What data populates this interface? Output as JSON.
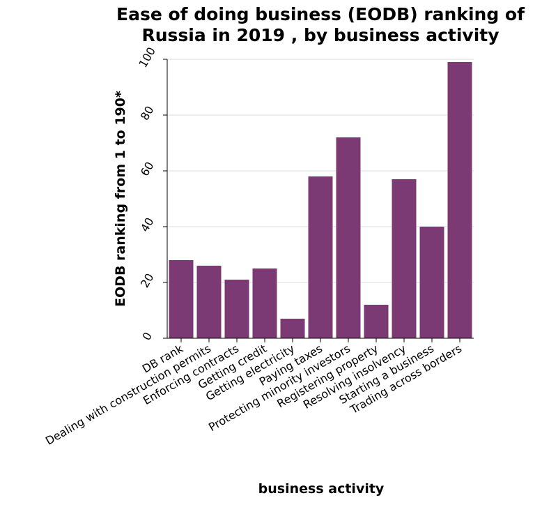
{
  "chart_data": {
    "type": "bar",
    "title": "Ease of doing business (EODB) ranking of Russia in 2019 , by business activity",
    "title_lines": [
      "Ease of doing business (EODB) ranking of",
      "Russia in 2019 , by business activity"
    ],
    "xlabel": "business activity",
    "ylabel": "EODB ranking from 1 to 190*",
    "categories": [
      "DB rank",
      "Dealing with construction permits",
      "Enforcing contracts",
      "Getting credit",
      "Getting electricity",
      "Paying taxes",
      "Protecting minority investors",
      "Registering property",
      "Resolving insolvency",
      "Starting a business",
      "Trading across borders"
    ],
    "values": [
      28,
      26,
      21,
      25,
      7,
      58,
      72,
      12,
      57,
      40,
      99
    ],
    "ylim": [
      0,
      100
    ],
    "yticks": [
      0,
      20,
      40,
      60,
      80,
      100
    ],
    "grid": true,
    "bar_color": "#7b3a74"
  }
}
